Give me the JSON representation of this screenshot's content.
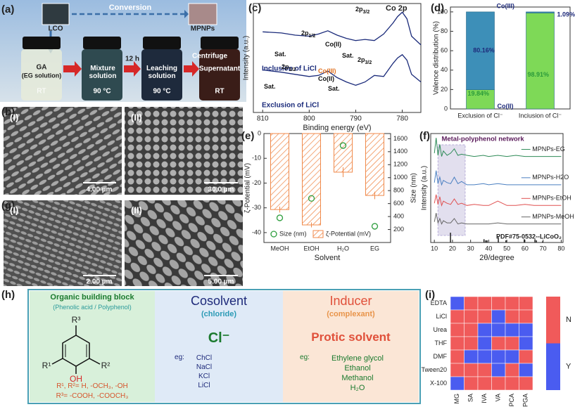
{
  "panels": {
    "photo_a": {
      "label": "(a)",
      "conversion": "Conversion",
      "lco": "LCO",
      "mpnps": "MPNPs",
      "time": "12 h",
      "centrifuge": "Centrifuge",
      "vials": [
        {
          "name": "GA",
          "note": "(EG solution)",
          "temp": "RT"
        },
        {
          "name": "Mixture solution",
          "temp": "90 °C"
        },
        {
          "name": "Leaching solution",
          "temp": "90 °C"
        },
        {
          "name": "Supernatant",
          "temp": "RT"
        }
      ]
    },
    "sem_b": {
      "label": "(b)",
      "images": [
        {
          "label": "(I)",
          "scale": "4.00 µm"
        },
        {
          "label": "(II)",
          "scale": "30.0 µm"
        }
      ]
    },
    "sem_g": {
      "label": "(g)",
      "images": [
        {
          "label": "(I)",
          "scale": "2.00 µm"
        },
        {
          "label": "(II)",
          "scale": "5.00 µm"
        }
      ]
    },
    "scheme_h": {
      "label": "(h)",
      "building_block": {
        "title": "Organic building block",
        "subtitle": "(Phenolic acid / Polyphenol)",
        "r1": "R¹",
        "r2": "R²",
        "r3": "R³",
        "oh": "OH",
        "line1": "R¹, R²= H, -OCH₃, -OH",
        "line2": "R³= -COOH, -COOCH₃"
      },
      "cosolvent": {
        "title": "Cosolvent",
        "subtitle": "(chloride)",
        "highlight": "Cl⁻",
        "eg": "eg:",
        "items": [
          "ChCl",
          "NaCl",
          "KCl",
          "LiCl"
        ]
      },
      "inducer": {
        "title": "Inducer",
        "subtitle": "(complexant)",
        "highlight": "Protic solvent",
        "eg": "eg:",
        "items": [
          "Ethylene glycol",
          "Ethanol",
          "Methanol",
          "H₂O"
        ]
      }
    }
  },
  "chart_data": [
    {
      "type": "line",
      "panel_label": "(c)",
      "title": "Co 2p",
      "xlabel": "Binding energy (eV)",
      "ylabel": "Intensity (a.u.)",
      "x": [
        810,
        806,
        803,
        800,
        798,
        796,
        794,
        792,
        790,
        788,
        786,
        784,
        782,
        781,
        780,
        779,
        778,
        776
      ],
      "xlim": [
        812,
        776
      ],
      "xticks": [
        810,
        800,
        790,
        780
      ],
      "ylim": [
        0,
        100
      ],
      "series": [
        {
          "name": "Inclusion of LiCl",
          "color": "#1a2a7a",
          "values": [
            74,
            73,
            71,
            70,
            72,
            75,
            71,
            68,
            66,
            67,
            66,
            72,
            82,
            88,
            92,
            86,
            70,
            62
          ]
        },
        {
          "name": "Exclusion of LiCl",
          "color": "#1a2a7a",
          "values": [
            39,
            37,
            35,
            33,
            34,
            38,
            32,
            28,
            25,
            28,
            34,
            33,
            45,
            50,
            53,
            48,
            35,
            28
          ]
        }
      ],
      "annotations": [
        {
          "text": "2p",
          "sub": "1/2"
        },
        {
          "text": "Co(II)"
        },
        {
          "text": "2p",
          "sub": "3/2"
        },
        {
          "text": "Sat."
        },
        {
          "text": "Sat."
        },
        {
          "text": "2p",
          "sub": "1/2"
        },
        {
          "text": "2p",
          "sub": "3/2"
        },
        {
          "text": "Co(III)"
        },
        {
          "text": "Co(II)"
        },
        {
          "text": "Sat."
        },
        {
          "text": "Sat."
        }
      ]
    },
    {
      "type": "stacked_bar",
      "panel_label": "(d)",
      "ylabel": "Valence distribution (%)",
      "categories": [
        "Exclusion of Cl⁻",
        "Inciusion of Cl⁻"
      ],
      "ylim": [
        0,
        105
      ],
      "yticks": [
        0,
        20,
        40,
        60,
        80,
        100
      ],
      "series": [
        {
          "name": "Co(II)",
          "color": "#7ed957",
          "values": [
            19.84,
            98.91
          ],
          "value_labels": [
            "19.84%",
            "98.91%"
          ]
        },
        {
          "name": "Co(III)",
          "color": "#3d8fb8",
          "values": [
            80.16,
            1.09
          ],
          "value_labels": [
            "80.16%",
            "1.09%"
          ]
        }
      ]
    },
    {
      "type": "bar_scatter",
      "panel_label": "(e)",
      "xlabel": "Solvent",
      "ylabel": "ζ-Potential (mV)",
      "y2label": "Size (nm)",
      "categories": [
        "MeOH",
        "EtOH",
        "H₂O",
        "EG"
      ],
      "ylim": [
        -44,
        0
      ],
      "yticks": [
        0,
        -10,
        -20,
        -30,
        -40
      ],
      "y2lim": [
        0,
        1680
      ],
      "y2ticks": [
        200,
        400,
        600,
        800,
        1000,
        1200,
        1400,
        1600
      ],
      "series": [
        {
          "name": "ζ-Potential (mV)",
          "color": "#f08a4b",
          "values": [
            -30.7,
            -36.9,
            -15.6,
            -25
          ],
          "errors": [
            1.2,
            1,
            2,
            1.5
          ]
        },
        {
          "name": "Size (nm)",
          "color": "#2e9e3e",
          "values": [
            380,
            680,
            1495,
            250
          ],
          "axis": "y2"
        }
      ]
    },
    {
      "type": "line",
      "panel_label": "(f)",
      "xlabel": "2θ/degree",
      "ylabel": "Intensity (a.u.)",
      "annotation": "Metal-polyphenol network",
      "x": [
        10,
        11,
        12,
        13,
        14,
        15,
        17,
        19,
        21,
        23,
        25,
        28,
        32,
        37,
        40,
        45,
        50,
        55,
        60,
        65,
        70,
        75,
        80
      ],
      "xlim": [
        8,
        81
      ],
      "xticks": [
        10,
        20,
        30,
        40,
        50,
        60,
        70,
        80
      ],
      "ylim": [
        0,
        100
      ],
      "series": [
        {
          "name": "MPNPs-EG",
          "color": "#2e8b57",
          "values": [
            82,
            96,
            80,
            90,
            79,
            84,
            80,
            82,
            86,
            80,
            81,
            80,
            79,
            80,
            79,
            80,
            79,
            80,
            79,
            79,
            79,
            79,
            79
          ]
        },
        {
          "name": "MPNPs-H2O",
          "color": "#4a7fc1",
          "values": [
            55,
            66,
            54,
            60,
            53,
            57,
            55,
            54,
            60,
            54,
            56,
            53,
            53,
            54,
            53,
            54,
            53,
            53,
            53,
            53,
            53,
            53,
            53
          ]
        },
        {
          "name": "MPNPs-EtOH",
          "color": "#e05050",
          "values": [
            36,
            44,
            35,
            42,
            34,
            38,
            36,
            35,
            40,
            35,
            36,
            34,
            35,
            34,
            34,
            38,
            34,
            34,
            35,
            34,
            34,
            34,
            34
          ]
        },
        {
          "name": "MPNPs-MeOH",
          "color": "#666666",
          "values": [
            19,
            27,
            18,
            22,
            17,
            20,
            18,
            18,
            22,
            17,
            18,
            17,
            17,
            17,
            17,
            18,
            17,
            17,
            17,
            17,
            17,
            17,
            17
          ]
        }
      ],
      "reference": {
        "name": "PDF#75-0532--LiCoO₂",
        "x": [
          18.9,
          37.4,
          38.4,
          39.1,
          45.3,
          49.5,
          59.6,
          65.5,
          66.3,
          69.7
        ],
        "values": [
          9,
          3,
          2,
          2,
          5,
          2,
          3,
          3,
          2,
          1
        ],
        "color": "#111111"
      }
    },
    {
      "type": "heatmap",
      "panel_label": "(i)",
      "rows": [
        "EDTA",
        "LiCl",
        "Urea",
        "THF",
        "DMF",
        "Tween20",
        "X-100"
      ],
      "columns": [
        "MG",
        "SA",
        "IVA",
        "VA",
        "PCA",
        "PGA"
      ],
      "values": [
        [
          "Y",
          "N",
          "N",
          "N",
          "N",
          "N"
        ],
        [
          "N",
          "N",
          "N",
          "Y",
          "N",
          "N"
        ],
        [
          "N",
          "N",
          "Y",
          "Y",
          "Y",
          "Y"
        ],
        [
          "N",
          "N",
          "Y",
          "N",
          "N",
          "Y"
        ],
        [
          "N",
          "Y",
          "Y",
          "Y",
          "Y",
          "N"
        ],
        [
          "N",
          "N",
          "N",
          "Y",
          "N",
          "Y"
        ],
        [
          "Y",
          "N",
          "N",
          "N",
          "N",
          "N"
        ]
      ],
      "legend": [
        {
          "label": "N",
          "color": "#f05a5a"
        },
        {
          "label": "Y",
          "color": "#4a5cf0"
        }
      ]
    }
  ]
}
